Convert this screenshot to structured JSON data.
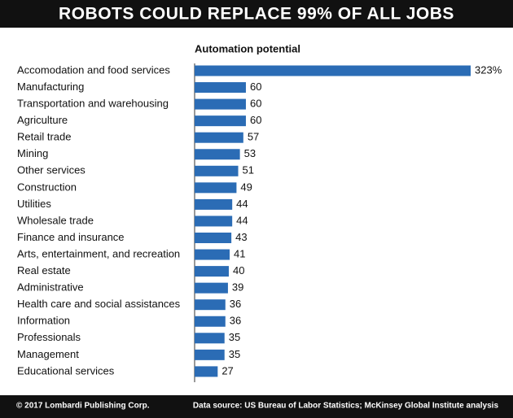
{
  "chart_data": {
    "type": "bar",
    "orientation": "horizontal",
    "title": "ROBOTS COULD REPLACE 99% OF ALL JOBS",
    "subtitle": "Automation potential",
    "categories": [
      "Accomodation and food services",
      "Manufacturing",
      "Transportation and warehousing",
      "Agriculture",
      "Retail trade",
      "Mining",
      "Other services",
      "Construction",
      "Utilities",
      "Wholesale trade",
      "Finance and insurance",
      "Arts, entertainment, and recreation",
      "Real estate",
      "Administrative",
      "Health care and social assistances",
      "Information",
      "Professionals",
      "Management",
      "Educational services"
    ],
    "values": [
      323,
      60,
      60,
      60,
      57,
      53,
      51,
      49,
      44,
      44,
      43,
      41,
      40,
      39,
      36,
      36,
      35,
      35,
      27
    ],
    "value_labels": [
      "323%",
      "60",
      "60",
      "60",
      "57",
      "53",
      "51",
      "49",
      "44",
      "44",
      "43",
      "41",
      "40",
      "39",
      "36",
      "36",
      "35",
      "35",
      "27"
    ],
    "color": "#2b6cb5",
    "footer_left": "© 2017 Lombardi Publishing Corp.",
    "footer_right": "Data source: US Bureau of Labor Statistics; McKinsey Global Institute analysis"
  }
}
